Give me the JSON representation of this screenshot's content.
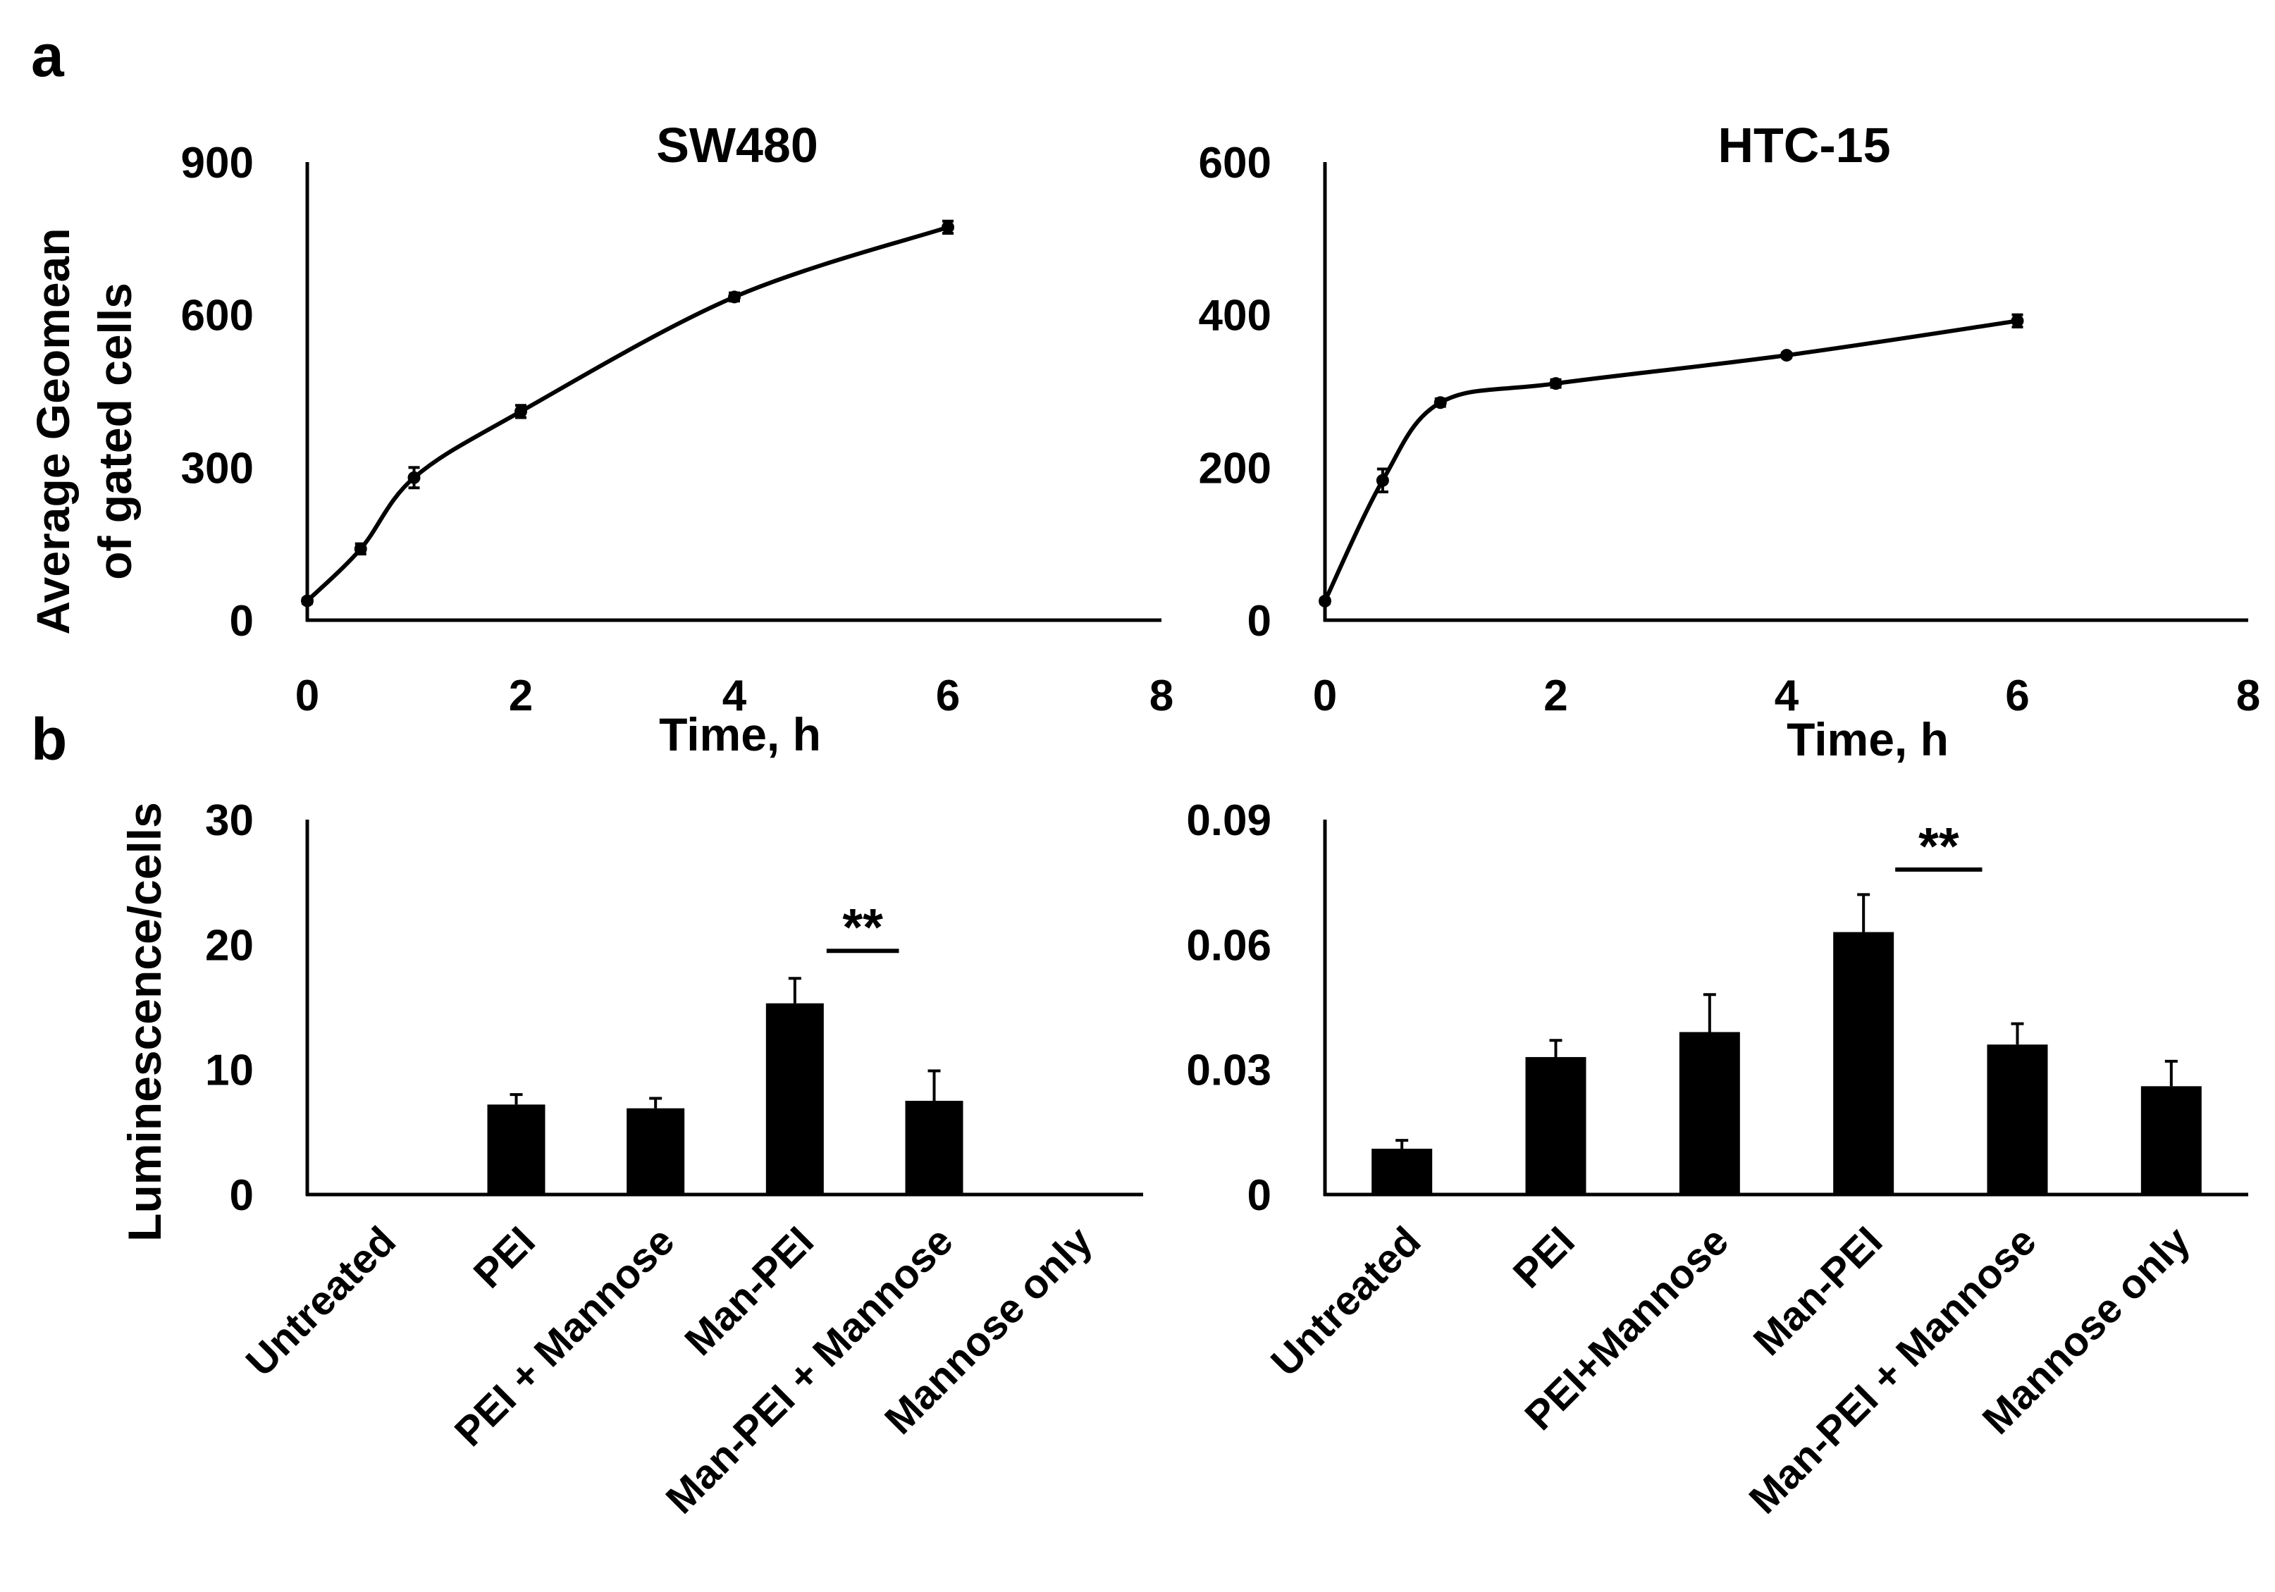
{
  "panels": [
    {
      "letter": "a"
    },
    {
      "letter": "b"
    }
  ],
  "axis_titles": {
    "a_y": [
      "Average Geomean",
      "of gated cells"
    ],
    "b_y": "Luminescence/cells"
  },
  "colors": {
    "ink": "#000000",
    "bar": "#000000",
    "background": "#ffffff"
  },
  "chart_data": [
    {
      "type": "line",
      "title": "SW480",
      "xlabel": "Time, h",
      "ylabel": "Average Geomean of gated cells",
      "xlim": [
        0,
        8
      ],
      "ylim": [
        0,
        900
      ],
      "xticks": [
        0,
        2,
        4,
        6,
        8
      ],
      "yticks": [
        0,
        300,
        600,
        900
      ],
      "grid": false,
      "legend": "none",
      "x": [
        0,
        0.5,
        1,
        2,
        4,
        6
      ],
      "y": [
        38,
        140,
        280,
        410,
        635,
        772
      ],
      "err": [
        5,
        10,
        20,
        12,
        8,
        12
      ]
    },
    {
      "type": "line",
      "title": "HTC-15",
      "xlabel": "Time, h",
      "ylabel": "",
      "xlim": [
        0,
        8
      ],
      "ylim": [
        0,
        600
      ],
      "xticks": [
        0,
        2,
        4,
        6,
        8
      ],
      "yticks": [
        0,
        200,
        400,
        600
      ],
      "grid": false,
      "legend": "none",
      "x": [
        0,
        0.5,
        1,
        2,
        4,
        6
      ],
      "y": [
        25,
        183,
        285,
        310,
        347,
        392
      ],
      "err": [
        3,
        15,
        5,
        5,
        3,
        8
      ]
    },
    {
      "type": "bar",
      "title": "",
      "xlabel": "",
      "ylabel": "Luminescence/cells",
      "ylim": [
        0,
        30
      ],
      "yticks": [
        0,
        10,
        20,
        30
      ],
      "ytick_labels": [
        "0",
        "10",
        "20",
        "30"
      ],
      "grid": false,
      "legend": "none",
      "categories": [
        "Untreated",
        "PEI",
        "PEI + Mannose",
        "Man-PEI",
        "Man-PEI + Mannose",
        "Mannose only"
      ],
      "values": [
        0.05,
        7.2,
        6.9,
        15.3,
        7.5,
        0.05
      ],
      "err": [
        0,
        0.8,
        0.8,
        2.0,
        2.4,
        0
      ],
      "annotations": [
        {
          "text": "**",
          "from": "Man-PEI",
          "to": "Man-PEI + Mannose",
          "y": 19.5
        }
      ]
    },
    {
      "type": "bar",
      "title": "",
      "xlabel": "",
      "ylabel": "",
      "ylim": [
        0,
        0.09
      ],
      "yticks": [
        0,
        0.03,
        0.06,
        0.09
      ],
      "ytick_labels": [
        "0",
        "0.03",
        "0.06",
        "0.09"
      ],
      "grid": false,
      "legend": "none",
      "categories": [
        "Untreated",
        "PEI",
        "PEI+Mannose",
        "Man-PEI",
        "Man-PEI + Mannose",
        "Mannose only"
      ],
      "values": [
        0.011,
        0.033,
        0.039,
        0.063,
        0.036,
        0.026
      ],
      "err": [
        0.002,
        0.004,
        0.009,
        0.009,
        0.005,
        0.006
      ],
      "annotations": [
        {
          "text": "**",
          "from": "Man-PEI",
          "to": "Man-PEI + Mannose",
          "y": 0.078
        }
      ]
    }
  ]
}
